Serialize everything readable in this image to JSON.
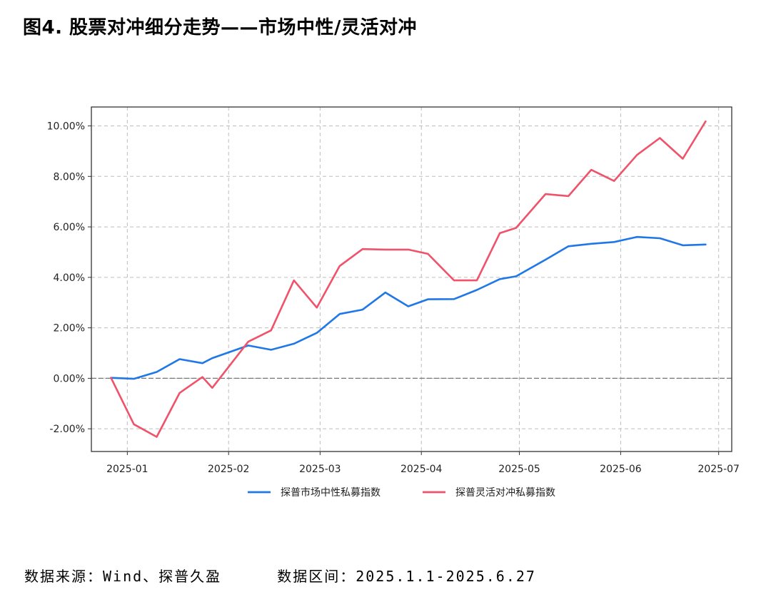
{
  "figure_title": "图4. 股票对冲细分走势——市场中性/灵活对冲",
  "footer": {
    "source": "数据来源：Wind、探普久盈",
    "range": "数据区间：2025.1.1-2025.6.27"
  },
  "chart_data": {
    "type": "line",
    "title": "",
    "xlabel": "",
    "ylabel": "",
    "x_ticks": [
      "2025-01",
      "2025-02",
      "2025-03",
      "2025-04",
      "2025-05",
      "2025-06",
      "2025-07"
    ],
    "y_ticks": [
      "-2.00%",
      "0.00%",
      "2.00%",
      "4.00%",
      "6.00%",
      "8.00%",
      "10.00%"
    ],
    "ylim": [
      -2.9,
      10.75
    ],
    "xlim": [
      "2024-12-21",
      "2025-07-05"
    ],
    "grid": true,
    "legend_position": "bottom",
    "x": [
      "2024-12-27",
      "2025-01-03",
      "2025-01-10",
      "2025-01-17",
      "2025-01-24",
      "2025-01-27",
      "2025-02-07",
      "2025-02-14",
      "2025-02-21",
      "2025-02-28",
      "2025-03-07",
      "2025-03-14",
      "2025-03-21",
      "2025-03-28",
      "2025-04-03",
      "2025-04-11",
      "2025-04-18",
      "2025-04-25",
      "2025-04-30",
      "2025-05-09",
      "2025-05-16",
      "2025-05-23",
      "2025-05-30",
      "2025-06-06",
      "2025-06-13",
      "2025-06-20",
      "2025-06-27"
    ],
    "series": [
      {
        "name": "探普市场中性私募指数",
        "color": "#1f77e8",
        "values": [
          0.02,
          -0.02,
          0.25,
          0.76,
          0.6,
          0.8,
          1.3,
          1.13,
          1.37,
          1.8,
          2.55,
          2.72,
          3.4,
          2.85,
          3.13,
          3.14,
          3.5,
          3.93,
          4.04,
          4.7,
          5.23,
          5.33,
          5.4,
          5.6,
          5.55,
          5.27,
          5.3
        ]
      },
      {
        "name": "探普灵活对冲私募指数",
        "color": "#f0526a",
        "values": [
          0.02,
          -1.82,
          -2.32,
          -0.58,
          0.05,
          -0.38,
          1.45,
          1.9,
          3.88,
          2.8,
          4.45,
          5.12,
          5.1,
          5.1,
          4.93,
          3.88,
          3.88,
          5.75,
          5.96,
          7.3,
          7.22,
          8.26,
          7.82,
          8.85,
          9.52,
          8.7,
          10.18
        ]
      }
    ],
    "zero_line": true
  }
}
